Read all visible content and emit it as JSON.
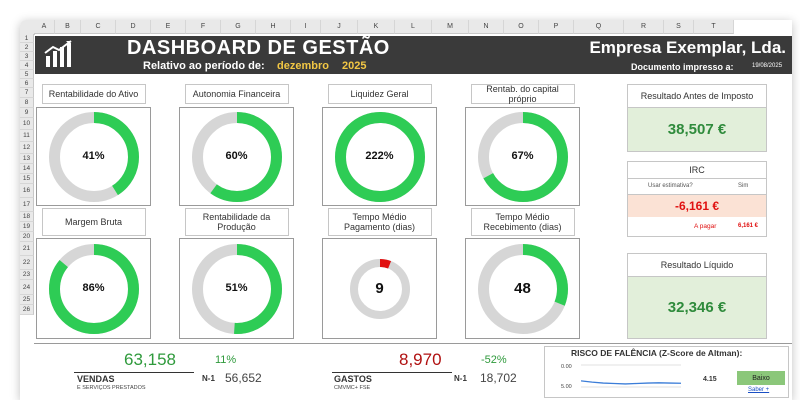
{
  "columns": [
    "A",
    "B",
    "C",
    "D",
    "E",
    "F",
    "G",
    "H",
    "I",
    "J",
    "K",
    "L",
    "M",
    "N",
    "O",
    "P",
    "Q",
    "R",
    "S",
    "T"
  ],
  "rows": [
    "1",
    "2",
    "3",
    "4",
    "5",
    "6",
    "7",
    "8",
    "9",
    "10",
    "11",
    "12",
    "13",
    "14",
    "15",
    "16",
    "17",
    "18",
    "19",
    "20",
    "21",
    "22",
    "23",
    "24",
    "25",
    "26"
  ],
  "header": {
    "title": "DASHBOARD DE GESTÃO",
    "period_label": "Relativo ao período de:",
    "period_month": "dezembro",
    "period_year": "2025",
    "company": "Empresa Exemplar, Lda.",
    "doc_label": "Documento impresso a:",
    "doc_date": "19/08/2025"
  },
  "kpis": [
    {
      "title": "Rentabilidade do Ativo",
      "value": "41%",
      "fill": 0.41
    },
    {
      "title": "Autonomia Financeira",
      "value": "60%",
      "fill": 0.6
    },
    {
      "title": "Liquidez Geral",
      "value": "222%",
      "fill": 1.0
    },
    {
      "title": "Rentab. do capital próprio",
      "value": "67%",
      "fill": 0.67
    },
    {
      "title": "Margem Bruta",
      "value": "86%",
      "fill": 0.86
    },
    {
      "title": "Rentabilidade da Produção",
      "value": "51%",
      "fill": 0.51
    },
    {
      "title": "Tempo Médio Pagamento (dias)",
      "value": "9",
      "fill": 0.06
    },
    {
      "title": "Tempo Médio Recebimento (dias)",
      "value": "48",
      "fill": 0.31
    }
  ],
  "colors": {
    "green": "#2ecc55",
    "grey": "#d6d6d6",
    "red": "#e01010",
    "banner": "#3a3a3a",
    "yellow": "#f2c744"
  },
  "results": {
    "rai_title": "Resultado Antes de Imposto",
    "rai_value": "38,507 €",
    "irc_title": "IRC",
    "irc_estimate_label": "Usar estimativa?",
    "irc_estimate_value": "Sim",
    "irc_value": "-6,161 €",
    "irc_pay_label": "A pagar",
    "irc_pay_value": "6,161 €",
    "rl_title": "Resultado Líquido",
    "rl_value": "32,346 €"
  },
  "bottom": {
    "sales_value": "63,158",
    "sales_pct": "11%",
    "sales_label": "VENDAS",
    "sales_sub": "E SERVIÇOS PRESTADOS",
    "sales_prev_label": "N-1",
    "sales_prev": "56,652",
    "costs_value": "8,970",
    "costs_pct": "-52%",
    "costs_label": "GASTOS",
    "costs_sub": "CMVMC+ FSE",
    "costs_prev_label": "N-1",
    "costs_prev": "18,702",
    "risk_title": "RISCO DE FALÊNCIA (Z-Score de Altman):",
    "risk_axis_top": "0.00",
    "risk_axis_bottom": "5.00",
    "risk_score": "4.15",
    "risk_level": "Baixo",
    "risk_link": "Saber +",
    "sparkline": [
      3.6,
      3.9,
      4.1,
      4.2,
      4.3,
      4.2,
      4.1,
      4.05,
      4.1,
      4.15
    ]
  }
}
